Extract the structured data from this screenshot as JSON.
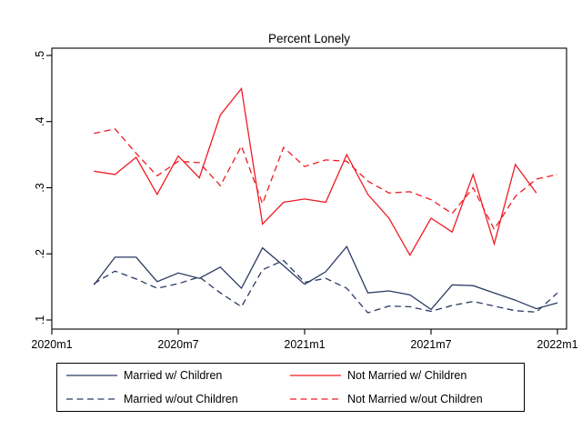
{
  "title": "Percent Lonely",
  "chart_data": {
    "type": "line",
    "title": "Percent Lonely",
    "x_unit": "months since 2020m1 (monthly data, first point 2020m3)",
    "x_range_months": [
      0,
      24
    ],
    "ylim": [
      0.1,
      0.5
    ],
    "grid": false,
    "legend_position": "bottom",
    "axis_color": "#000000",
    "background_color": "#ffffff",
    "x_axis": {
      "ticks": [
        {
          "m": 0,
          "label": "2020m1"
        },
        {
          "m": 6,
          "label": "2020m7"
        },
        {
          "m": 12,
          "label": "2021m1"
        },
        {
          "m": 18,
          "label": "2021m7"
        },
        {
          "m": 24,
          "label": "2022m1"
        }
      ]
    },
    "y_axis": {
      "ticks": [
        {
          "v": 0.1,
          "label": ".1"
        },
        {
          "v": 0.2,
          "label": ".2"
        },
        {
          "v": 0.3,
          "label": ".3"
        },
        {
          "v": 0.4,
          "label": ".4"
        },
        {
          "v": 0.5,
          "label": ".5"
        }
      ]
    },
    "series": [
      {
        "name": "Married w/ Children",
        "color": "#2b3a64",
        "dash": "solid",
        "start_month": 2,
        "values": [
          0.153,
          0.195,
          0.195,
          0.158,
          0.171,
          0.163,
          0.18,
          0.148,
          0.209,
          0.182,
          0.154,
          0.173,
          0.211,
          0.141,
          0.144,
          0.138,
          0.116,
          0.153,
          0.152,
          0.141,
          0.13,
          0.117,
          0.126
        ]
      },
      {
        "name": "Married w/out Children",
        "color": "#2b3a64",
        "dash": "dashed",
        "start_month": 2,
        "values": [
          0.155,
          0.174,
          0.162,
          0.148,
          0.155,
          0.165,
          0.141,
          0.12,
          0.176,
          0.19,
          0.157,
          0.163,
          0.148,
          0.111,
          0.121,
          0.12,
          0.113,
          0.122,
          0.128,
          0.121,
          0.114,
          0.112,
          0.141
        ]
      },
      {
        "name": "Not Married w/ Children",
        "color": "#ee1b23",
        "dash": "solid",
        "start_month": 2,
        "values": [
          0.325,
          0.32,
          0.346,
          0.29,
          0.348,
          0.315,
          0.41,
          0.45,
          0.245,
          0.278,
          0.283,
          0.278,
          0.35,
          0.29,
          0.254,
          0.198,
          0.254,
          0.233,
          0.32,
          0.215,
          0.335,
          0.292
        ]
      },
      {
        "name": "Not Married w/out Children",
        "color": "#ee1b23",
        "dash": "dashed",
        "start_month": 2,
        "values": [
          0.382,
          0.389,
          0.352,
          0.318,
          0.34,
          0.338,
          0.303,
          0.363,
          0.276,
          0.361,
          0.332,
          0.342,
          0.34,
          0.31,
          0.292,
          0.294,
          0.282,
          0.261,
          0.3,
          0.237,
          0.287,
          0.313,
          0.32
        ]
      }
    ],
    "legend_order": [
      0,
      2,
      1,
      3
    ]
  }
}
